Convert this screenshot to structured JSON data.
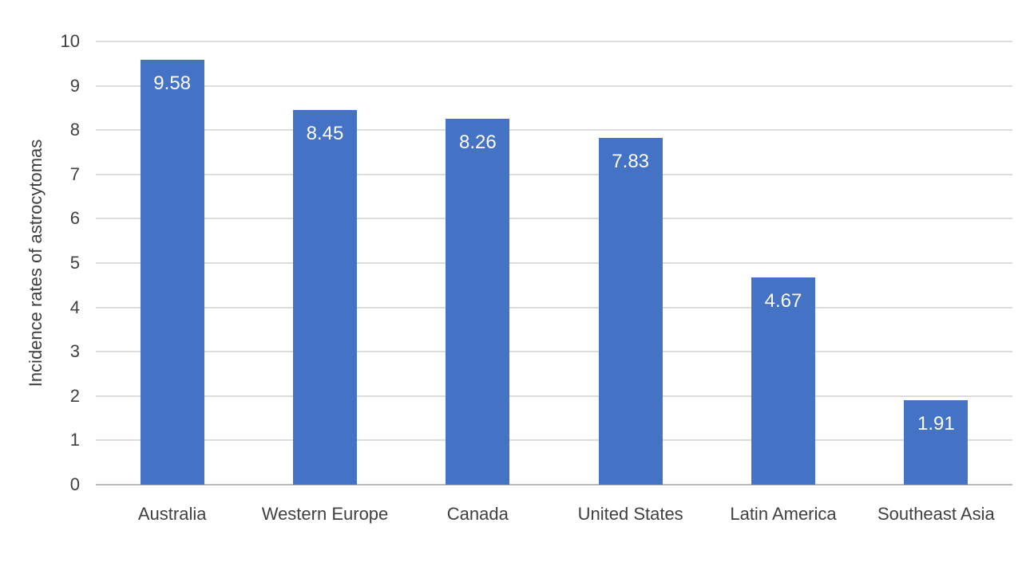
{
  "chart_data": {
    "type": "bar",
    "title": "",
    "xlabel": "",
    "ylabel": "Incidence rates of astrocytomas",
    "categories": [
      "Australia",
      "Western Europe",
      "Canada",
      "United States",
      "Latin America",
      "Southeast Asia"
    ],
    "values": [
      9.58,
      8.45,
      8.26,
      7.83,
      4.67,
      1.91
    ],
    "value_labels": [
      "9.58",
      "8.45",
      "8.26",
      "7.83",
      "4.67",
      "1.91"
    ],
    "ylim": [
      0,
      10
    ],
    "yticks": [
      0,
      1,
      2,
      3,
      4,
      5,
      6,
      7,
      8,
      9,
      10
    ],
    "grid": true,
    "legend": false,
    "colors": {
      "bar": "#4472C4",
      "gridline": "#DCDCDC",
      "axis_line": "#B8B8B8",
      "tick_label": "#404040",
      "value_label": "#FFFFFF",
      "background": "#FFFFFF"
    }
  }
}
